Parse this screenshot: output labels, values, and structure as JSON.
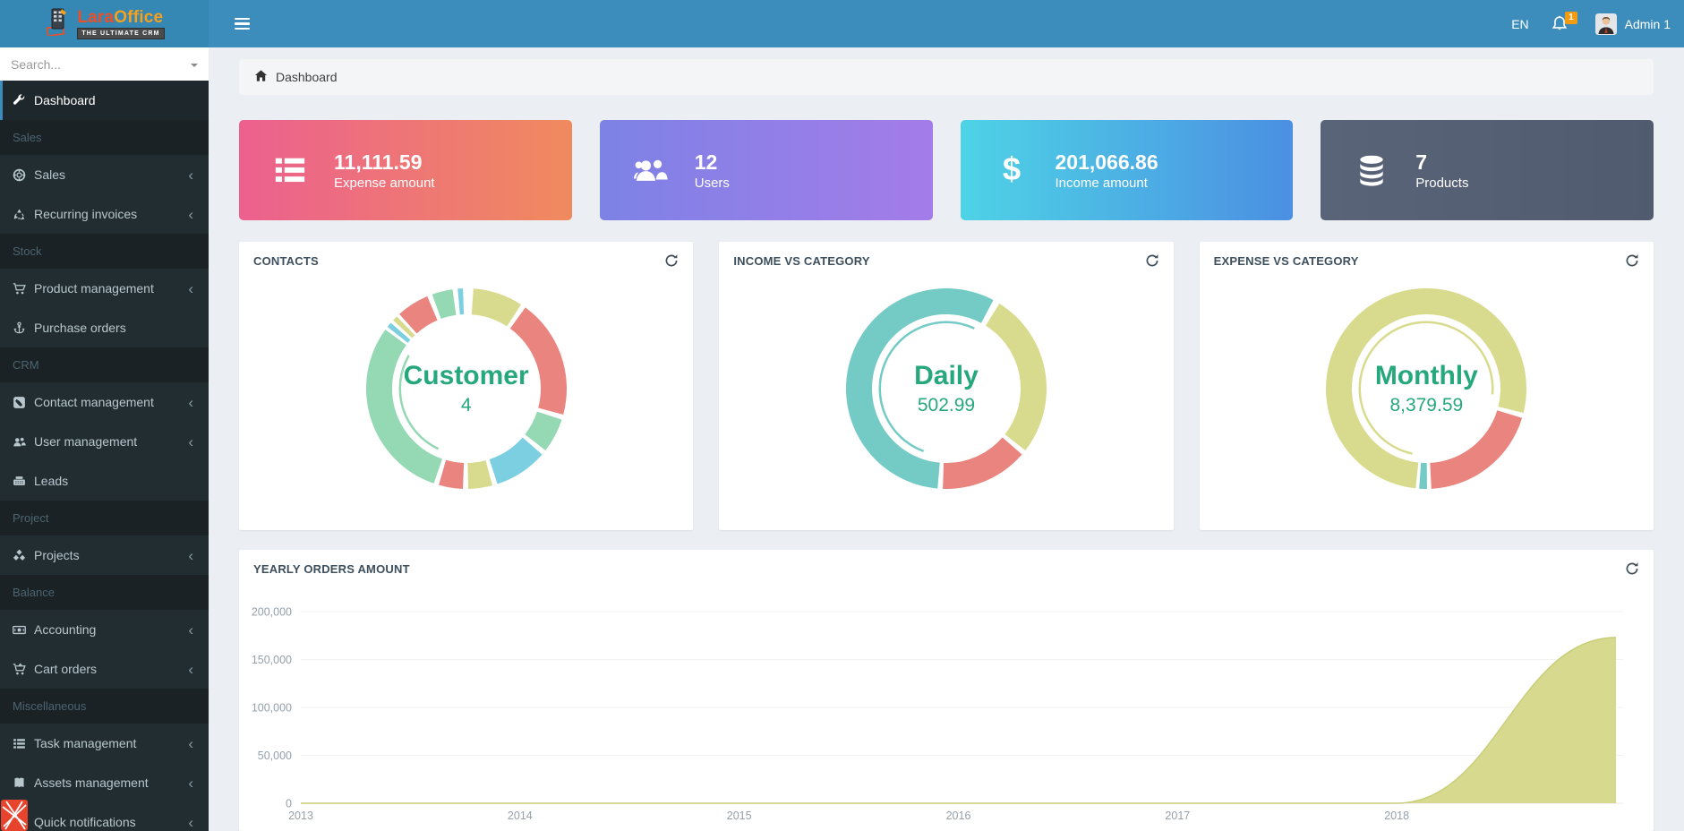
{
  "header": {
    "brand": {
      "name_primary": "Lara",
      "name_secondary": "Office",
      "tagline": "THE ULTIMATE CRM"
    },
    "language": "EN",
    "notification_count": "1",
    "user_name": "Admin 1"
  },
  "sidebar": {
    "search_placeholder": "Search...",
    "chevron_glyph": "‹",
    "menu": [
      {
        "type": "item",
        "label": "Dashboard",
        "icon": "wrench-icon",
        "active": true,
        "chevron": false
      },
      {
        "type": "header",
        "label": "Sales"
      },
      {
        "type": "item",
        "label": "Sales",
        "icon": "life-ring-icon",
        "chevron": true
      },
      {
        "type": "item",
        "label": "Recurring invoices",
        "icon": "recycle-icon",
        "chevron": true
      },
      {
        "type": "header",
        "label": "Stock"
      },
      {
        "type": "item",
        "label": "Product management",
        "icon": "cart-icon",
        "chevron": true
      },
      {
        "type": "item",
        "label": "Purchase orders",
        "icon": "anchor-icon",
        "chevron": false
      },
      {
        "type": "header",
        "label": "CRM"
      },
      {
        "type": "item",
        "label": "Contact management",
        "icon": "phone-square-icon",
        "chevron": true
      },
      {
        "type": "item",
        "label": "User management",
        "icon": "users-icon",
        "chevron": true
      },
      {
        "type": "item",
        "label": "Leads",
        "icon": "fax-icon",
        "chevron": false
      },
      {
        "type": "header",
        "label": "Project"
      },
      {
        "type": "item",
        "label": "Projects",
        "icon": "cubes-icon",
        "chevron": true
      },
      {
        "type": "header",
        "label": "Balance"
      },
      {
        "type": "item",
        "label": "Accounting",
        "icon": "money-icon",
        "chevron": true
      },
      {
        "type": "item",
        "label": "Cart orders",
        "icon": "cart-plus-icon",
        "chevron": true
      },
      {
        "type": "header",
        "label": "Miscellaneous"
      },
      {
        "type": "item",
        "label": "Task management",
        "icon": "list-icon",
        "chevron": true
      },
      {
        "type": "item",
        "label": "Assets management",
        "icon": "book-icon",
        "chevron": true
      },
      {
        "type": "item",
        "label": "Quick notifications",
        "icon": "envelope-icon",
        "chevron": true
      }
    ]
  },
  "breadcrumb": {
    "label": "Dashboard"
  },
  "stat_cards": [
    {
      "icon": "list-icon",
      "value": "11,111.59",
      "label": "Expense amount",
      "gradient": [
        "#ec608f",
        "#f08a5e"
      ]
    },
    {
      "icon": "users-icon",
      "value": "12",
      "label": "Users",
      "gradient": [
        "#7d82e5",
        "#a47ce9"
      ]
    },
    {
      "icon": "dollar-icon",
      "value": "201,066.86",
      "label": "Income amount",
      "gradient": [
        "#4ed3e6",
        "#4b8fe2"
      ]
    },
    {
      "icon": "database-icon",
      "value": "7",
      "label": "Products",
      "gradient": [
        "#5a6478",
        "#515b6f"
      ]
    }
  ],
  "chart_data": [
    {
      "id": "contacts",
      "type": "pie",
      "title": "CONTACTS",
      "center_label": "Customer",
      "center_value": "4",
      "center_color": "#26a87c",
      "legend_position": "none",
      "units": "degrees clockwise from top",
      "segments": [
        {
          "color": "#d8db8d",
          "from": 4,
          "to": 33
        },
        {
          "color": "#e9847e",
          "from": 36,
          "to": 105
        },
        {
          "color": "#94d8b4",
          "from": 108,
          "to": 128
        },
        {
          "color": "#7bcfe0",
          "from": 131,
          "to": 162
        },
        {
          "color": "#d8db8d",
          "from": 165,
          "to": 179
        },
        {
          "color": "#e9847e",
          "from": 182,
          "to": 196
        },
        {
          "color": "#94d8b4",
          "from": 199,
          "to": 306
        },
        {
          "color": "#7bcfe0",
          "from": 308,
          "to": 311
        },
        {
          "color": "#d8db8d",
          "from": 313,
          "to": 316
        },
        {
          "color": "#e9847e",
          "from": 318,
          "to": 337
        },
        {
          "color": "#94d8b4",
          "from": 340,
          "to": 352
        },
        {
          "color": "#7bcfe0",
          "from": 355,
          "to": 358
        }
      ],
      "inner_arc": {
        "color": "#94d8b4",
        "from": 205,
        "to": 300
      }
    },
    {
      "id": "income",
      "type": "pie",
      "title": "INCOME VS CATEGORY",
      "center_label": "Daily",
      "center_value": "502.99",
      "center_color": "#26a87c",
      "legend_position": "none",
      "units": "degrees clockwise from top",
      "segments": [
        {
          "color": "#74cbc6",
          "from": 185,
          "to": 388
        },
        {
          "color": "#d8db8d",
          "from": 32,
          "to": 128
        },
        {
          "color": "#e9847e",
          "from": 131,
          "to": 182
        }
      ],
      "inner_arc": {
        "color": "#74cbc6",
        "from": 200,
        "to": 385
      }
    },
    {
      "id": "expense",
      "type": "pie",
      "title": "EXPENSE VS CATEGORY",
      "center_label": "Monthly",
      "center_value": "8,379.59",
      "center_color": "#26a87c",
      "legend_position": "none",
      "units": "degrees clockwise from top",
      "segments": [
        {
          "color": "#d8db8d",
          "from": 186,
          "to": 464
        },
        {
          "color": "#e9847e",
          "from": 107,
          "to": 177
        },
        {
          "color": "#74cbc6",
          "from": 179.5,
          "to": 184
        }
      ],
      "inner_arc": {
        "color": "#d8db8d",
        "from": 192,
        "to": 455
      }
    },
    {
      "id": "yearly",
      "type": "area",
      "title": "YEARLY ORDERS AMOUNT",
      "x": [
        2013,
        2014,
        2015,
        2016,
        2017,
        2018,
        2019
      ],
      "values": [
        0,
        0,
        0,
        0,
        0,
        0,
        173000
      ],
      "xtick_labels": [
        "2013",
        "2014",
        "2015",
        "2016",
        "2017",
        "2018"
      ],
      "yticks": [
        0,
        50000,
        100000,
        150000,
        200000
      ],
      "ytick_labels": [
        "0",
        "50,000",
        "100,000",
        "150,000",
        "200,000"
      ],
      "ylim": [
        0,
        200000
      ],
      "grid": true,
      "fill": "#d6d98e",
      "stroke": "#c9ce79"
    }
  ]
}
